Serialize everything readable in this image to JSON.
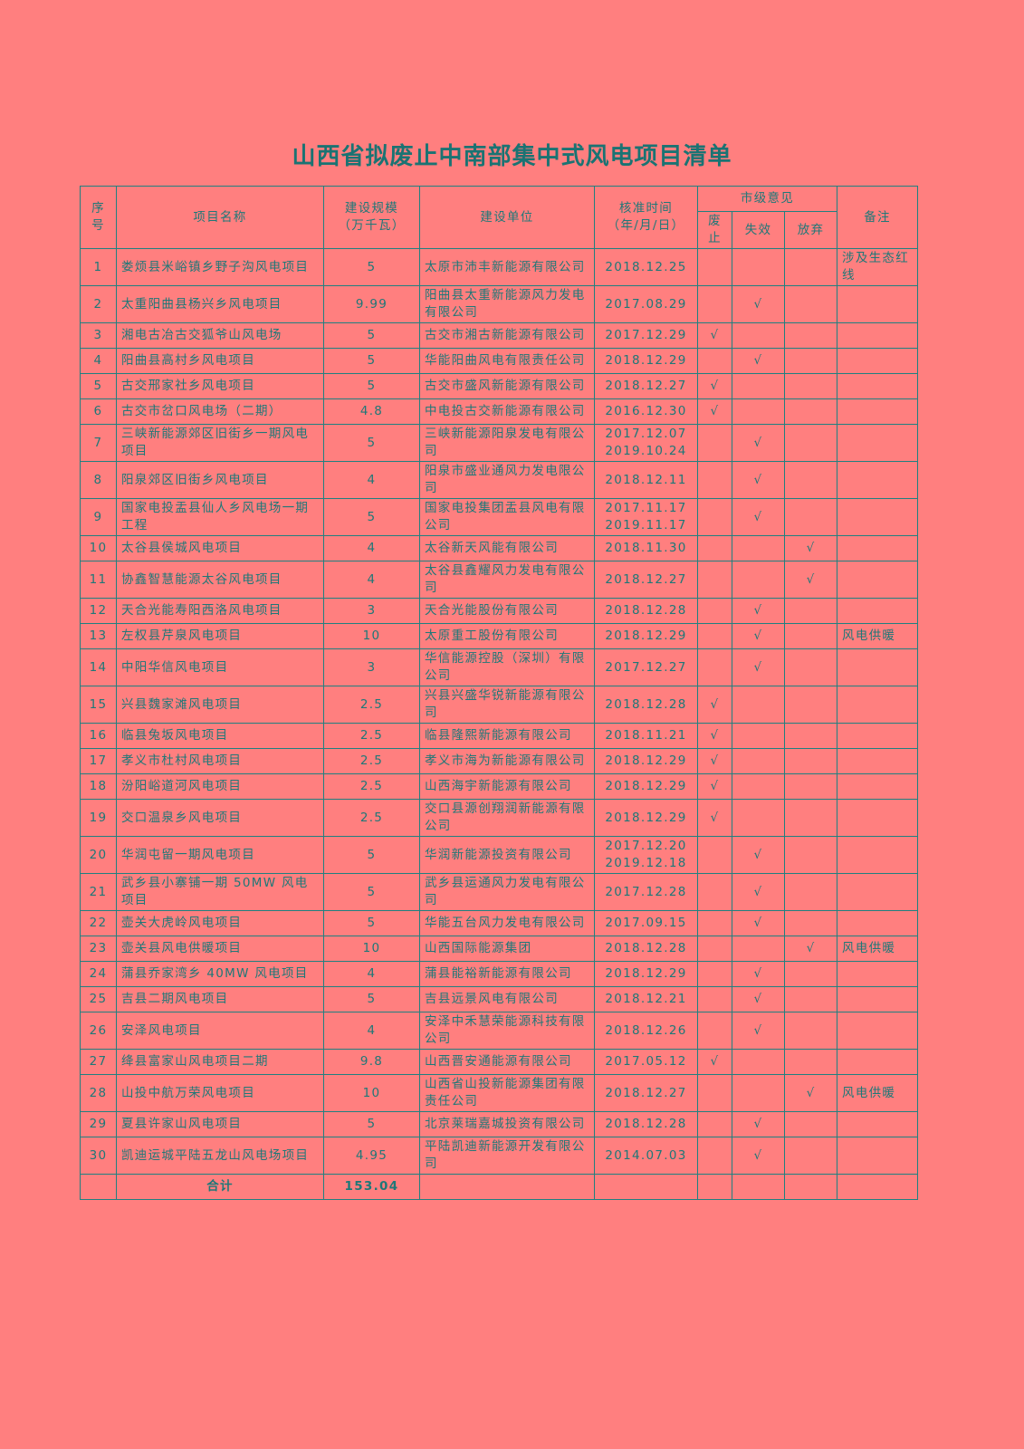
{
  "title": "山西省拟废止中南部集中式风电项目清单",
  "header": {
    "seq": [
      "序",
      "号"
    ],
    "name": "项目名称",
    "capacity": [
      "建设规模",
      "（万千瓦）"
    ],
    "unit": "建设单位",
    "date": [
      "核准时间",
      "（年/月/日）"
    ],
    "opinion": "市级意见",
    "abolish": [
      "废",
      "止"
    ],
    "invalid": "失效",
    "abandon": "放弃",
    "remark": "备注"
  },
  "check_mark": "√",
  "rows": [
    {
      "no": "1",
      "name": "娄烦县米峪镇乡野子沟风电项目",
      "cap": "5",
      "unit": "太原市沛丰新能源有限公司",
      "date": [
        "2018.12.25"
      ],
      "op": "",
      "remark": "涉及生态红线"
    },
    {
      "no": "2",
      "name": "太重阳曲县杨兴乡风电项目",
      "cap": "9.99",
      "unit": "阳曲县太重新能源风力发电有限公司",
      "date": [
        "2017.08.29"
      ],
      "op": "invalid",
      "remark": ""
    },
    {
      "no": "3",
      "name": "湘电古冶古交狐爷山风电场",
      "cap": "5",
      "unit": "古交市湘古新能源有限公司",
      "date": [
        "2017.12.29"
      ],
      "op": "abolish",
      "remark": ""
    },
    {
      "no": "4",
      "name": "阳曲县高村乡风电项目",
      "cap": "5",
      "unit": "华能阳曲风电有限责任公司",
      "date": [
        "2018.12.29"
      ],
      "op": "invalid",
      "remark": ""
    },
    {
      "no": "5",
      "name": "古交邢家社乡风电项目",
      "cap": "5",
      "unit": "古交市盛风新能源有限公司",
      "date": [
        "2018.12.27"
      ],
      "op": "abolish",
      "remark": ""
    },
    {
      "no": "6",
      "name": "古交市岔口风电场（二期）",
      "cap": "4.8",
      "unit": "中电投古交新能源有限公司",
      "date": [
        "2016.12.30"
      ],
      "op": "abolish",
      "remark": ""
    },
    {
      "no": "7",
      "name": "三峡新能源郊区旧街乡一期风电项目",
      "cap": "5",
      "unit": "三峡新能源阳泉发电有限公司",
      "date": [
        "2017.12.07",
        "2019.10.24"
      ],
      "op": "invalid",
      "remark": ""
    },
    {
      "no": "8",
      "name": "阳泉郊区旧街乡风电项目",
      "cap": "4",
      "unit": "阳泉市盛业通风力发电限公司",
      "date": [
        "2018.12.11"
      ],
      "op": "invalid",
      "remark": ""
    },
    {
      "no": "9",
      "name": "国家电投盂县仙人乡风电场一期工程",
      "cap": "5",
      "unit": "国家电投集团盂县风电有限公司",
      "date": [
        "2017.11.17",
        "2019.11.17"
      ],
      "op": "invalid",
      "remark": ""
    },
    {
      "no": "10",
      "name": "太谷县侯城风电项目",
      "cap": "4",
      "unit": "太谷新天风能有限公司",
      "date": [
        "2018.11.30"
      ],
      "op": "abandon",
      "remark": ""
    },
    {
      "no": "11",
      "name": "协鑫智慧能源太谷风电项目",
      "cap": "4",
      "unit": "太谷县鑫耀风力发电有限公司",
      "date": [
        "2018.12.27"
      ],
      "op": "abandon",
      "remark": ""
    },
    {
      "no": "12",
      "name": "天合光能寿阳西洛风电项目",
      "cap": "3",
      "unit": "天合光能股份有限公司",
      "date": [
        "2018.12.28"
      ],
      "op": "invalid",
      "remark": ""
    },
    {
      "no": "13",
      "name": "左权县芹泉风电项目",
      "cap": "10",
      "unit": "太原重工股份有限公司",
      "date": [
        "2018.12.29"
      ],
      "op": "invalid",
      "remark": "风电供暖"
    },
    {
      "no": "14",
      "name": "中阳华信风电项目",
      "cap": "3",
      "unit": "华信能源控股（深圳）有限公司",
      "date": [
        "2017.12.27"
      ],
      "op": "invalid",
      "remark": ""
    },
    {
      "no": "15",
      "name": "兴县魏家滩风电项目",
      "cap": "2.5",
      "unit": "兴县兴盛华锐新能源有限公司",
      "date": [
        "2018.12.28"
      ],
      "op": "abolish",
      "remark": ""
    },
    {
      "no": "16",
      "name": "临县兔坂风电项目",
      "cap": "2.5",
      "unit": "临县隆熙新能源有限公司",
      "date": [
        "2018.11.21"
      ],
      "op": "abolish",
      "remark": ""
    },
    {
      "no": "17",
      "name": "孝义市杜村风电项目",
      "cap": "2.5",
      "unit": "孝义市海为新能源有限公司",
      "date": [
        "2018.12.29"
      ],
      "op": "abolish",
      "remark": ""
    },
    {
      "no": "18",
      "name": "汾阳峪道河风电项目",
      "cap": "2.5",
      "unit": "山西海宇新能源有限公司",
      "date": [
        "2018.12.29"
      ],
      "op": "abolish",
      "remark": ""
    },
    {
      "no": "19",
      "name": "交口温泉乡风电项目",
      "cap": "2.5",
      "unit": "交口县源创翔润新能源有限公司",
      "date": [
        "2018.12.29"
      ],
      "op": "abolish",
      "remark": ""
    },
    {
      "no": "20",
      "name": "华润屯留一期风电项目",
      "cap": "5",
      "unit": "华润新能源投资有限公司",
      "date": [
        "2017.12.20",
        "2019.12.18"
      ],
      "op": "invalid",
      "remark": ""
    },
    {
      "no": "21",
      "name": "武乡县小寨铺一期 50MW 风电项目",
      "cap": "5",
      "unit": "武乡县运通风力发电有限公司",
      "date": [
        "2017.12.28"
      ],
      "op": "invalid",
      "remark": ""
    },
    {
      "no": "22",
      "name": "壶关大虎岭风电项目",
      "cap": "5",
      "unit": "华能五台风力发电有限公司",
      "date": [
        "2017.09.15"
      ],
      "op": "invalid",
      "remark": ""
    },
    {
      "no": "23",
      "name": "壶关县风电供暖项目",
      "cap": "10",
      "unit": "山西国际能源集团",
      "date": [
        "2018.12.28"
      ],
      "op": "abandon",
      "remark": "风电供暖"
    },
    {
      "no": "24",
      "name": "蒲县乔家湾乡 40MW 风电项目",
      "cap": "4",
      "unit": "蒲县能裕新能源有限公司",
      "date": [
        "2018.12.29"
      ],
      "op": "invalid",
      "remark": ""
    },
    {
      "no": "25",
      "name": "吉县二期风电项目",
      "cap": "5",
      "unit": "吉县远景风电有限公司",
      "date": [
        "2018.12.21"
      ],
      "op": "invalid",
      "remark": ""
    },
    {
      "no": "26",
      "name": "安泽风电项目",
      "cap": "4",
      "unit": "安泽中禾慧荣能源科技有限公司",
      "date": [
        "2018.12.26"
      ],
      "op": "invalid",
      "remark": ""
    },
    {
      "no": "27",
      "name": "绛县富家山风电项目二期",
      "cap": "9.8",
      "unit": "山西晋安通能源有限公司",
      "date": [
        "2017.05.12"
      ],
      "op": "abolish",
      "remark": ""
    },
    {
      "no": "28",
      "name": "山投中航万荣风电项目",
      "cap": "10",
      "unit": "山西省山投新能源集团有限责任公司",
      "date": [
        "2018.12.27"
      ],
      "op": "abandon",
      "remark": "风电供暖"
    },
    {
      "no": "29",
      "name": "夏县许家山风电项目",
      "cap": "5",
      "unit": "北京莱瑞嘉城投资有限公司",
      "date": [
        "2018.12.28"
      ],
      "op": "invalid",
      "remark": ""
    },
    {
      "no": "30",
      "name": "凯迪运城平陆五龙山风电场项目",
      "cap": "4.95",
      "unit": "平陆凯迪新能源开发有限公司",
      "date": [
        "2014.07.03"
      ],
      "op": "invalid",
      "remark": ""
    }
  ],
  "total": {
    "label": "合计",
    "cap": "153.04"
  },
  "colors": {
    "background": "#ff7f7f",
    "text": "#1e7878",
    "border": "#1f8080"
  }
}
